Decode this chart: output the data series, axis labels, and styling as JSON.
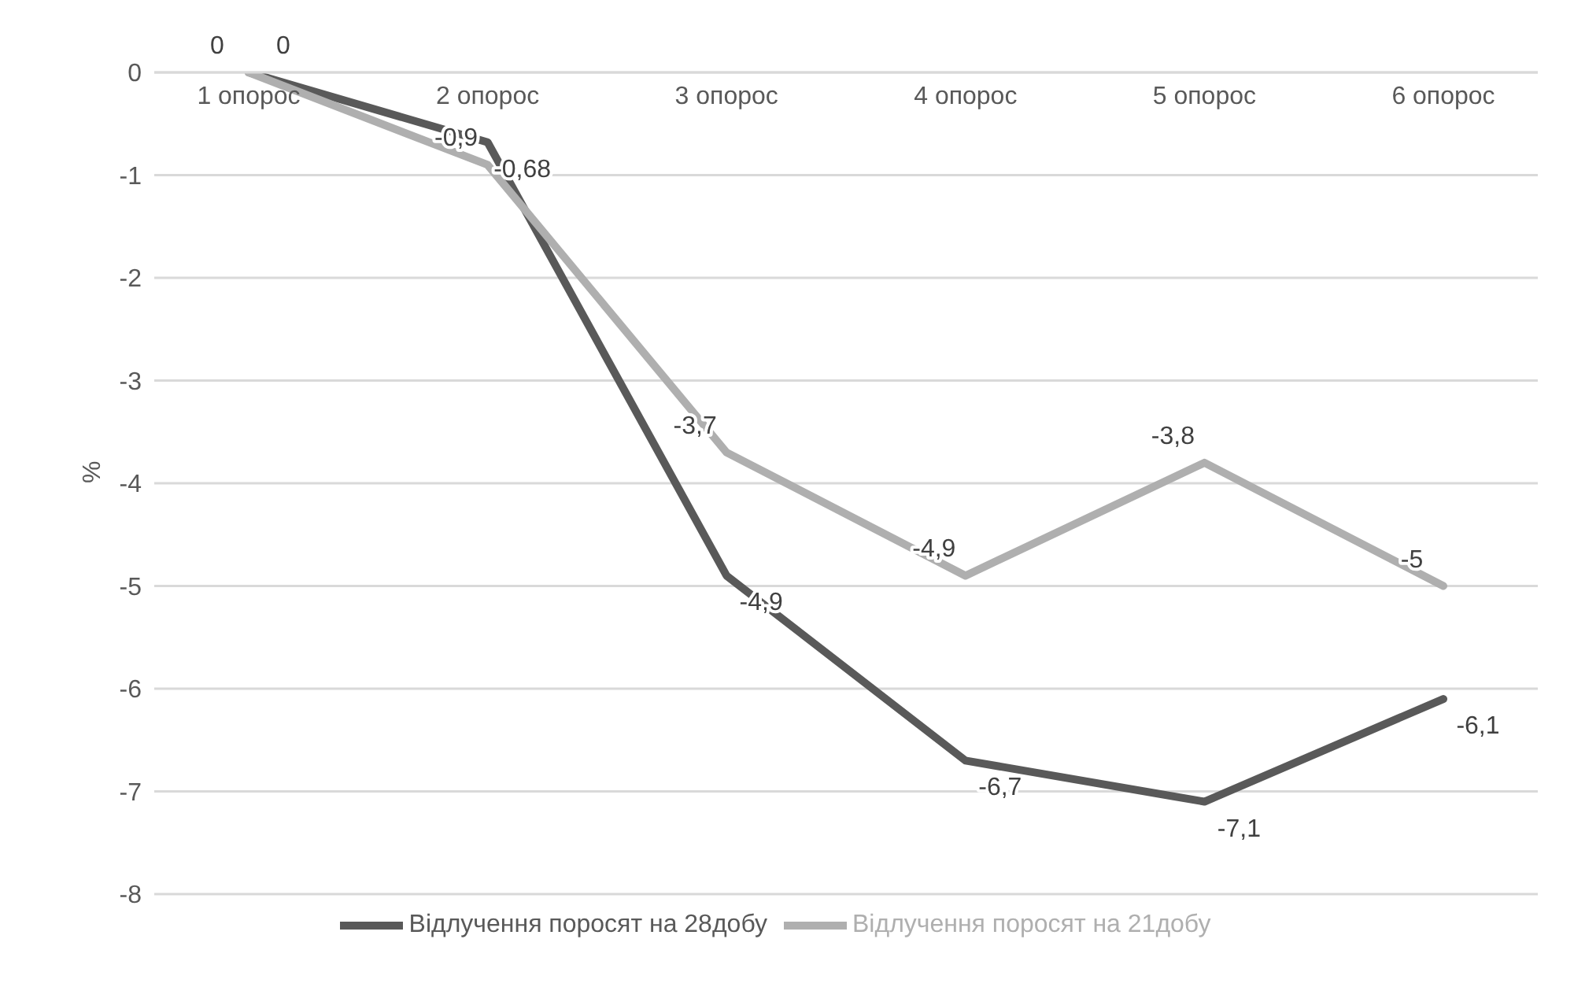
{
  "chart_data": {
    "type": "line",
    "ylabel": "%",
    "categories": [
      "1 опорос",
      "2 опорос",
      "3 опорос",
      "4 опорос",
      "5 опорос",
      "6 опорос"
    ],
    "series": [
      {
        "name": "Відлучення поросят на 28добу",
        "color": "#595959",
        "values": [
          0,
          -0.68,
          -4.9,
          -6.7,
          -7.1,
          -6.1
        ],
        "value_labels": [
          "0",
          "-0,68",
          "-4,9",
          "-6,7",
          "-7,1",
          "-6,1"
        ]
      },
      {
        "name": "Відлучення поросят на 21добу",
        "color": "#afafaf",
        "values": [
          0,
          -0.9,
          -3.7,
          -4.9,
          -3.8,
          -5
        ],
        "value_labels": [
          "0",
          "-0,9",
          "-3,7",
          "-4,9",
          "-3,8",
          "-5"
        ]
      }
    ],
    "ylim": [
      -8,
      0
    ],
    "yticks": [
      0,
      -1,
      -2,
      -3,
      -4,
      -5,
      -6,
      -7,
      -8
    ],
    "grid": "y",
    "legend": "bottom",
    "marker": "none",
    "line_style": "solid"
  }
}
